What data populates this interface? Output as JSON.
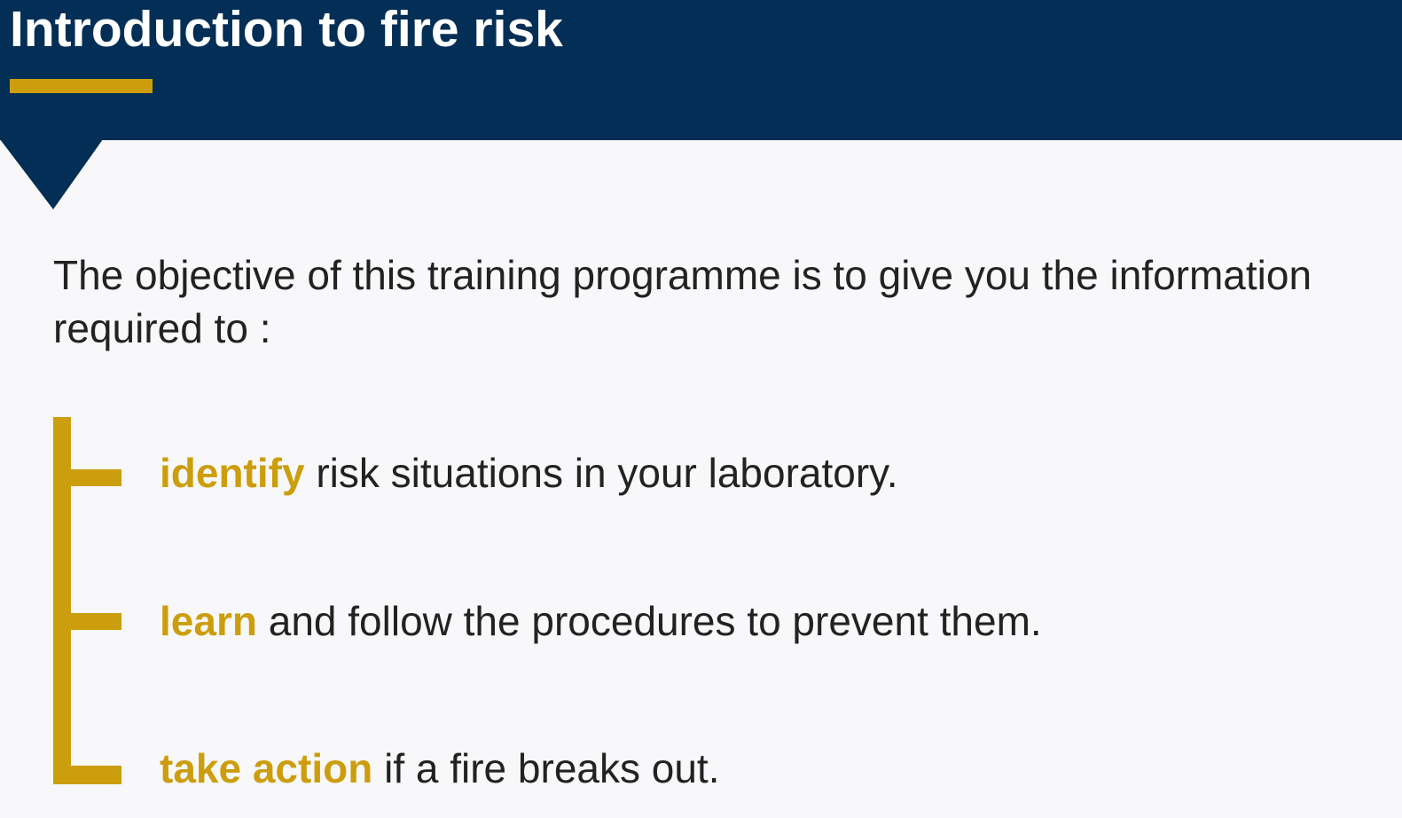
{
  "header": {
    "title": "Introduction to fire risk"
  },
  "intro": {
    "text": "The objective of this training programme is to give you the information required to :"
  },
  "objectives": [
    {
      "keyword": "identify",
      "rest": " risk situations in your laboratory."
    },
    {
      "keyword": "learn",
      "rest": " and follow the procedures to prevent them."
    },
    {
      "keyword": "take action",
      "rest": " if a fire breaks out."
    }
  ],
  "colors": {
    "header_bg": "#032e55",
    "accent": "#cc9e0d",
    "page_bg": "#f8f8fa",
    "text": "#222222"
  }
}
